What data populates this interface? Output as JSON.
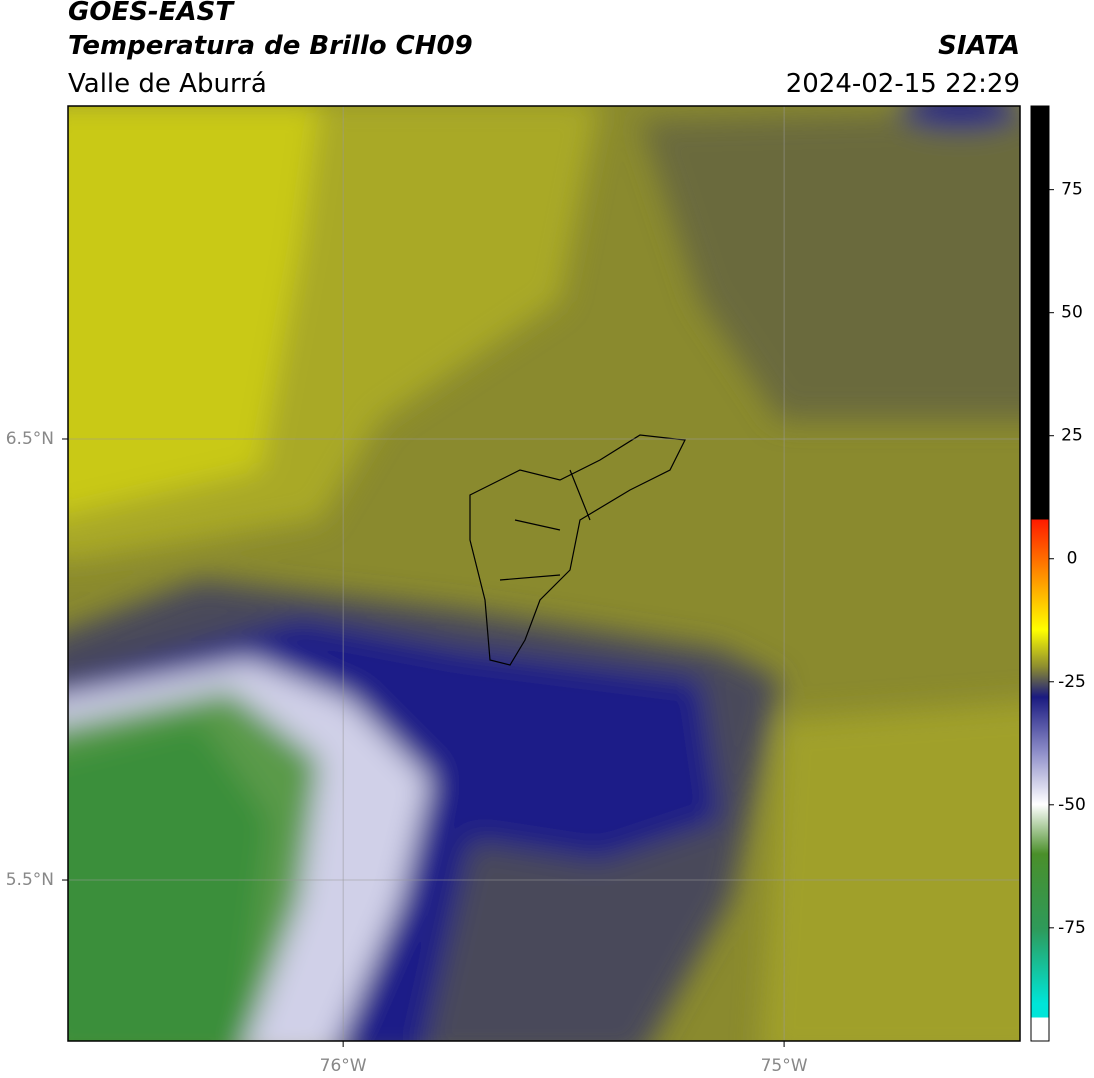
{
  "header": {
    "title": "GOES-EAST",
    "subtitle": "Temperatura de Brillo CH09",
    "region": "Valle de Aburrá",
    "source": "SIATA",
    "datetime": "2024-02-15 22:29"
  },
  "map": {
    "xlim": [
      -76.624,
      -74.465
    ],
    "ylim": [
      5.135,
      7.255
    ],
    "xticks": [
      {
        "value": -76,
        "label": "76°W"
      },
      {
        "value": -75,
        "label": "75°W"
      }
    ],
    "yticks": [
      {
        "value": 6.5,
        "label": "6.5°N"
      },
      {
        "value": 5.5,
        "label": "5.5°N"
      }
    ],
    "grid": true
  },
  "colorbar": {
    "lim": [
      -98,
      92
    ],
    "ticks": [
      75,
      50,
      25,
      0,
      -25,
      -50,
      -75
    ]
  }
}
